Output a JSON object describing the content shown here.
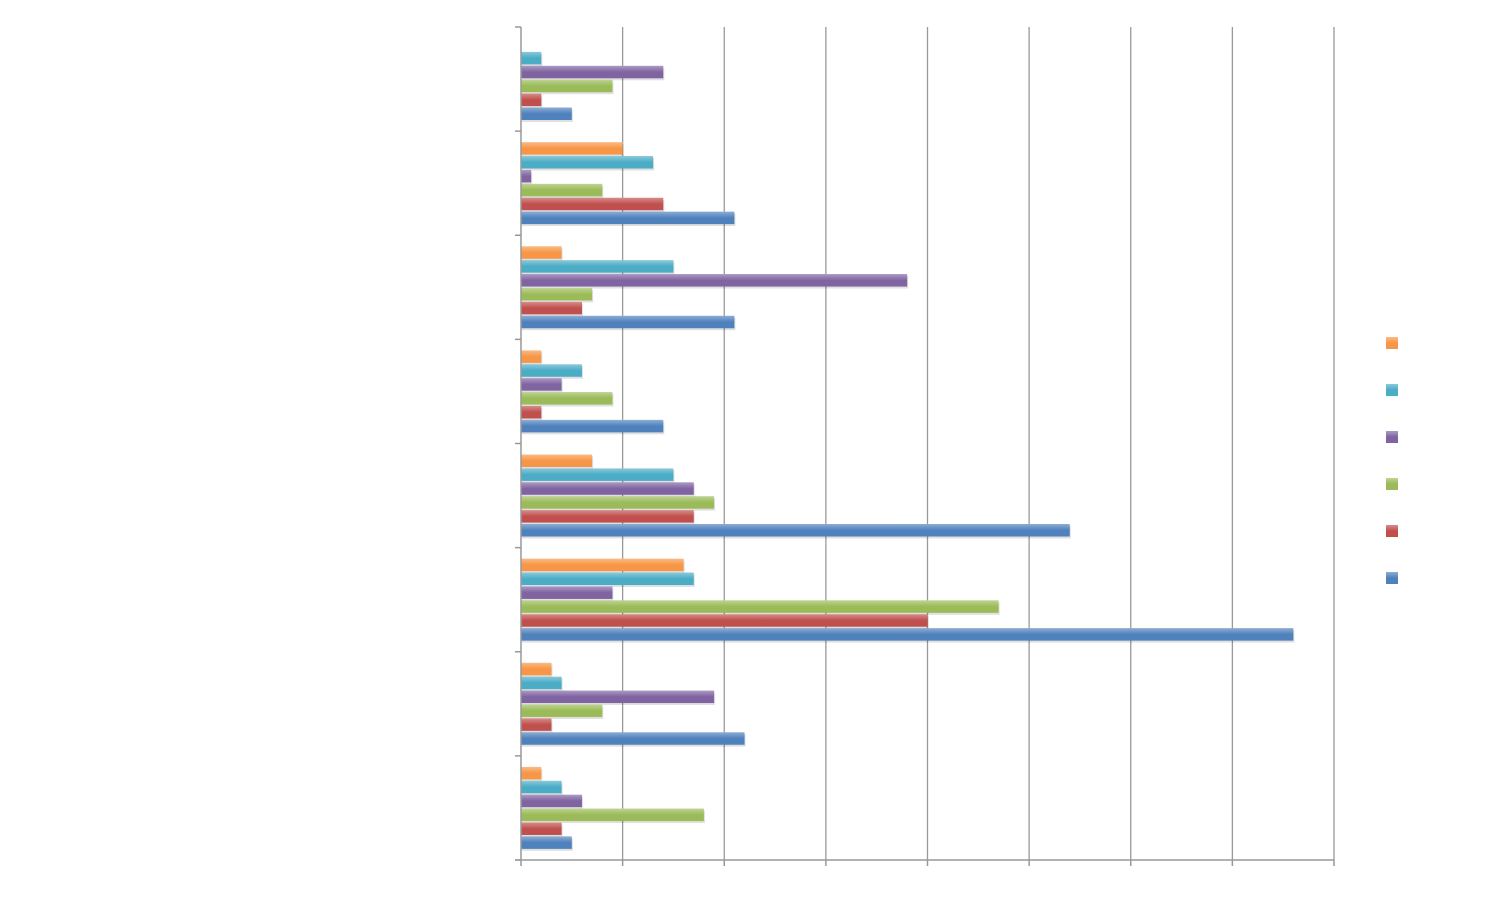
{
  "chart_data": {
    "type": "bar",
    "orientation": "horizontal",
    "title": "",
    "xlabel": "",
    "ylabel": "",
    "xlim": [
      0,
      8
    ],
    "grid": true,
    "legend_position": "right",
    "categories": [
      "",
      "",
      "",
      "",
      "",
      "",
      "",
      ""
    ],
    "series_order_note_visible": false,
    "series": [
      {
        "color": "#F79646",
        "values": [
          0,
          1.0,
          0.4,
          0.2,
          0.7,
          1.6,
          0.3,
          0.2
        ]
      },
      {
        "color": "#4BACC6",
        "values": [
          0.2,
          1.3,
          1.5,
          0.6,
          1.5,
          1.7,
          0.4,
          0.4
        ]
      },
      {
        "color": "#8064A2",
        "values": [
          1.4,
          0.1,
          3.8,
          0.4,
          1.7,
          0.9,
          1.9,
          0.6
        ]
      },
      {
        "color": "#9BBB59",
        "values": [
          0.9,
          0.8,
          0.7,
          0.9,
          1.9,
          4.7,
          0.8,
          1.8
        ]
      },
      {
        "color": "#C0504D",
        "values": [
          0.2,
          1.4,
          0.6,
          0.2,
          1.7,
          4.0,
          0.3,
          0.4
        ]
      },
      {
        "color": "#4F81BD",
        "values": [
          0.5,
          2.1,
          2.1,
          1.4,
          5.4,
          7.6,
          2.2,
          0.5
        ]
      }
    ]
  }
}
